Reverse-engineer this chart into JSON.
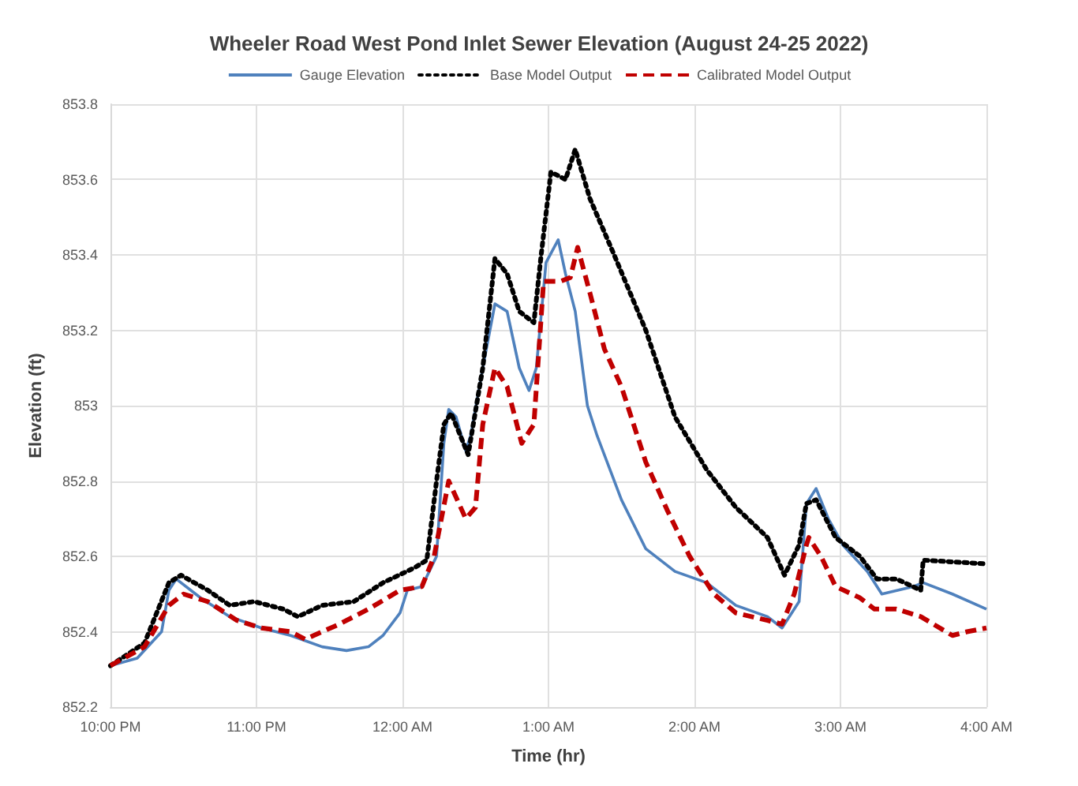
{
  "chart_data": {
    "type": "line",
    "title": "Wheeler Road West Pond Inlet Sewer Elevation (August 24-25 2022)",
    "xlabel": "Time (hr)",
    "ylabel": "Elevation (ft)",
    "xlim": [
      "2022-08-24T22:00",
      "2022-08-25T04:00"
    ],
    "xticks": [
      {
        "value": "2022-08-24T22:00",
        "label": "10:00 PM"
      },
      {
        "value": "2022-08-24T23:00",
        "label": "11:00 PM"
      },
      {
        "value": "2022-08-25T00:00",
        "label": "12:00 AM"
      },
      {
        "value": "2022-08-25T01:00",
        "label": "1:00 AM"
      },
      {
        "value": "2022-08-25T02:00",
        "label": "2:00 AM"
      },
      {
        "value": "2022-08-25T03:00",
        "label": "3:00 AM"
      },
      {
        "value": "2022-08-25T04:00",
        "label": "4:00 AM"
      }
    ],
    "ylim": [
      852.2,
      853.8
    ],
    "yticks": [
      852.2,
      852.4,
      852.6,
      852.8,
      853,
      853.2,
      853.4,
      853.6,
      853.8
    ],
    "grid": true,
    "legend": "top",
    "marker": "none",
    "series": [
      {
        "name": "Gauge Elevation",
        "color": "#4f81bd",
        "line_style": "solid",
        "x": [
          "2022-08-24T22:00",
          "2022-08-24T22:11",
          "2022-08-24T22:21",
          "2022-08-24T22:24",
          "2022-08-24T22:27",
          "2022-08-24T22:37",
          "2022-08-24T22:49",
          "2022-08-24T23:02",
          "2022-08-24T23:14",
          "2022-08-24T23:27",
          "2022-08-24T23:37",
          "2022-08-24T23:46",
          "2022-08-24T23:52",
          "2022-08-24T23:59",
          "2022-08-25T00:02",
          "2022-08-25T00:08",
          "2022-08-25T00:14",
          "2022-08-25T00:17",
          "2022-08-25T00:19",
          "2022-08-25T00:22",
          "2022-08-25T00:26",
          "2022-08-25T00:28",
          "2022-08-25T00:33",
          "2022-08-25T00:38",
          "2022-08-25T00:43",
          "2022-08-25T00:48",
          "2022-08-25T00:52",
          "2022-08-25T00:55",
          "2022-08-25T00:59",
          "2022-08-25T01:04",
          "2022-08-25T01:07",
          "2022-08-25T01:11",
          "2022-08-25T01:16",
          "2022-08-25T01:20",
          "2022-08-25T01:30",
          "2022-08-25T01:40",
          "2022-08-25T01:52",
          "2022-08-25T02:05",
          "2022-08-25T02:17",
          "2022-08-25T02:30",
          "2022-08-25T02:36",
          "2022-08-25T02:43",
          "2022-08-25T02:46",
          "2022-08-25T02:50",
          "2022-08-25T02:55",
          "2022-08-25T03:01",
          "2022-08-25T03:11",
          "2022-08-25T03:17",
          "2022-08-25T03:30",
          "2022-08-25T03:34",
          "2022-08-25T03:46",
          "2022-08-25T04:00"
        ],
        "values": [
          852.31,
          852.33,
          852.4,
          852.51,
          852.54,
          852.49,
          852.44,
          852.41,
          852.39,
          852.36,
          852.35,
          852.36,
          852.39,
          852.45,
          852.51,
          852.52,
          852.6,
          852.9,
          852.99,
          852.97,
          852.88,
          852.92,
          853.1,
          853.27,
          853.25,
          853.1,
          853.04,
          853.1,
          853.38,
          853.44,
          853.35,
          853.25,
          853.0,
          852.92,
          852.75,
          852.62,
          852.56,
          852.53,
          852.47,
          852.44,
          852.41,
          852.48,
          852.74,
          852.78,
          852.7,
          852.63,
          852.56,
          852.5,
          852.52,
          852.53,
          852.5,
          852.46
        ]
      },
      {
        "name": "Base Model Output",
        "color": "#000000",
        "line_style": "dotted",
        "x": [
          "2022-08-24T22:00",
          "2022-08-24T22:14",
          "2022-08-24T22:24",
          "2022-08-24T22:29",
          "2022-08-24T22:40",
          "2022-08-24T22:49",
          "2022-08-24T22:59",
          "2022-08-24T23:11",
          "2022-08-24T23:17",
          "2022-08-24T23:27",
          "2022-08-24T23:40",
          "2022-08-24T23:52",
          "2022-08-25T00:05",
          "2022-08-25T00:10",
          "2022-08-25T00:14",
          "2022-08-25T00:17",
          "2022-08-25T00:20",
          "2022-08-25T00:27",
          "2022-08-25T00:33",
          "2022-08-25T00:38",
          "2022-08-25T00:43",
          "2022-08-25T00:48",
          "2022-08-25T00:54",
          "2022-08-25T00:57",
          "2022-08-25T01:01",
          "2022-08-25T01:07",
          "2022-08-25T01:11",
          "2022-08-25T01:17",
          "2022-08-25T01:27",
          "2022-08-25T01:40",
          "2022-08-25T01:52",
          "2022-08-25T02:05",
          "2022-08-25T02:17",
          "2022-08-25T02:30",
          "2022-08-25T02:37",
          "2022-08-25T02:43",
          "2022-08-25T02:46",
          "2022-08-25T02:50",
          "2022-08-25T02:58",
          "2022-08-25T03:08",
          "2022-08-25T03:15",
          "2022-08-25T03:23",
          "2022-08-25T03:33",
          "2022-08-25T03:34",
          "2022-08-25T04:00"
        ],
        "values": [
          852.31,
          852.37,
          852.53,
          852.55,
          852.51,
          852.47,
          852.48,
          852.46,
          852.44,
          852.47,
          852.48,
          852.53,
          852.57,
          852.59,
          852.8,
          852.95,
          852.98,
          852.87,
          853.1,
          853.39,
          853.35,
          853.25,
          853.22,
          853.4,
          853.62,
          853.6,
          853.68,
          853.55,
          853.4,
          853.2,
          852.97,
          852.83,
          852.73,
          852.65,
          852.55,
          852.63,
          852.74,
          852.75,
          852.65,
          852.6,
          852.54,
          852.54,
          852.51,
          852.59,
          852.58
        ]
      },
      {
        "name": "Calibrated Model Output",
        "color": "#c00000",
        "line_style": "dashed",
        "x": [
          "2022-08-24T22:00",
          "2022-08-24T22:14",
          "2022-08-24T22:24",
          "2022-08-24T22:30",
          "2022-08-24T22:40",
          "2022-08-24T22:52",
          "2022-08-24T23:02",
          "2022-08-24T23:14",
          "2022-08-24T23:20",
          "2022-08-24T23:34",
          "2022-08-24T23:46",
          "2022-08-24T23:59",
          "2022-08-25T00:08",
          "2022-08-25T00:13",
          "2022-08-25T00:19",
          "2022-08-25T00:26",
          "2022-08-25T00:30",
          "2022-08-25T00:33",
          "2022-08-25T00:38",
          "2022-08-25T00:43",
          "2022-08-25T00:49",
          "2022-08-25T00:54",
          "2022-08-25T00:58",
          "2022-08-25T01:05",
          "2022-08-25T01:09",
          "2022-08-25T01:12",
          "2022-08-25T01:17",
          "2022-08-25T01:23",
          "2022-08-25T01:30",
          "2022-08-25T01:40",
          "2022-08-25T01:49",
          "2022-08-25T01:58",
          "2022-08-25T02:08",
          "2022-08-25T02:17",
          "2022-08-25T02:30",
          "2022-08-25T02:36",
          "2022-08-25T02:41",
          "2022-08-25T02:46",
          "2022-08-25T02:47",
          "2022-08-25T02:52",
          "2022-08-25T02:58",
          "2022-08-25T03:08",
          "2022-08-25T03:14",
          "2022-08-25T03:23",
          "2022-08-25T03:33",
          "2022-08-25T03:46",
          "2022-08-25T03:52",
          "2022-08-25T04:00"
        ],
        "values": [
          852.31,
          852.36,
          852.47,
          852.5,
          852.48,
          852.43,
          852.41,
          852.4,
          852.38,
          852.42,
          852.46,
          852.51,
          852.52,
          852.6,
          852.8,
          852.7,
          852.73,
          852.95,
          853.1,
          853.05,
          852.9,
          852.95,
          853.33,
          853.33,
          853.34,
          853.42,
          853.3,
          853.15,
          853.05,
          852.85,
          852.72,
          852.6,
          852.5,
          852.45,
          852.43,
          852.42,
          852.5,
          852.63,
          852.65,
          852.6,
          852.52,
          852.49,
          852.46,
          852.46,
          852.44,
          852.39,
          852.4,
          852.41
        ]
      }
    ]
  }
}
